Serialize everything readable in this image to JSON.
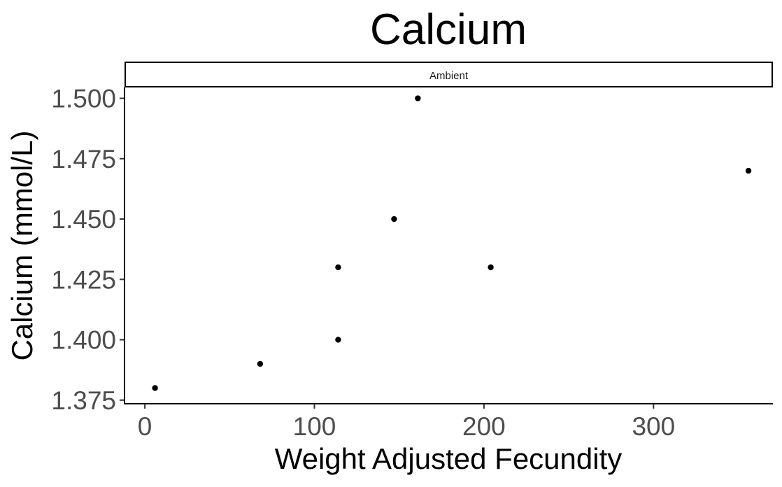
{
  "chart_data": {
    "type": "scatter",
    "title": "Calcium",
    "facet_label": "Ambient",
    "xlabel": "Weight Adjusted Fecundity",
    "ylabel": "Calcium (mmol/L)",
    "xlim": [
      -12,
      370
    ],
    "ylim": [
      1.3735,
      1.5045
    ],
    "x_ticks": [
      0,
      100,
      200,
      300
    ],
    "x_tick_labels": [
      "0",
      "100",
      "200",
      "300"
    ],
    "y_ticks": [
      1.375,
      1.4,
      1.425,
      1.45,
      1.475,
      1.5
    ],
    "y_tick_labels": [
      "1.375",
      "1.400",
      "1.425",
      "1.450",
      "1.475",
      "1.500"
    ],
    "grid": false,
    "legend": "none",
    "point_color": "#000000",
    "series": [
      {
        "x": [
          6,
          68,
          114,
          114,
          147,
          161,
          204,
          356
        ],
        "y": [
          1.38,
          1.39,
          1.4,
          1.43,
          1.45,
          1.5,
          1.43,
          1.47
        ]
      }
    ]
  }
}
